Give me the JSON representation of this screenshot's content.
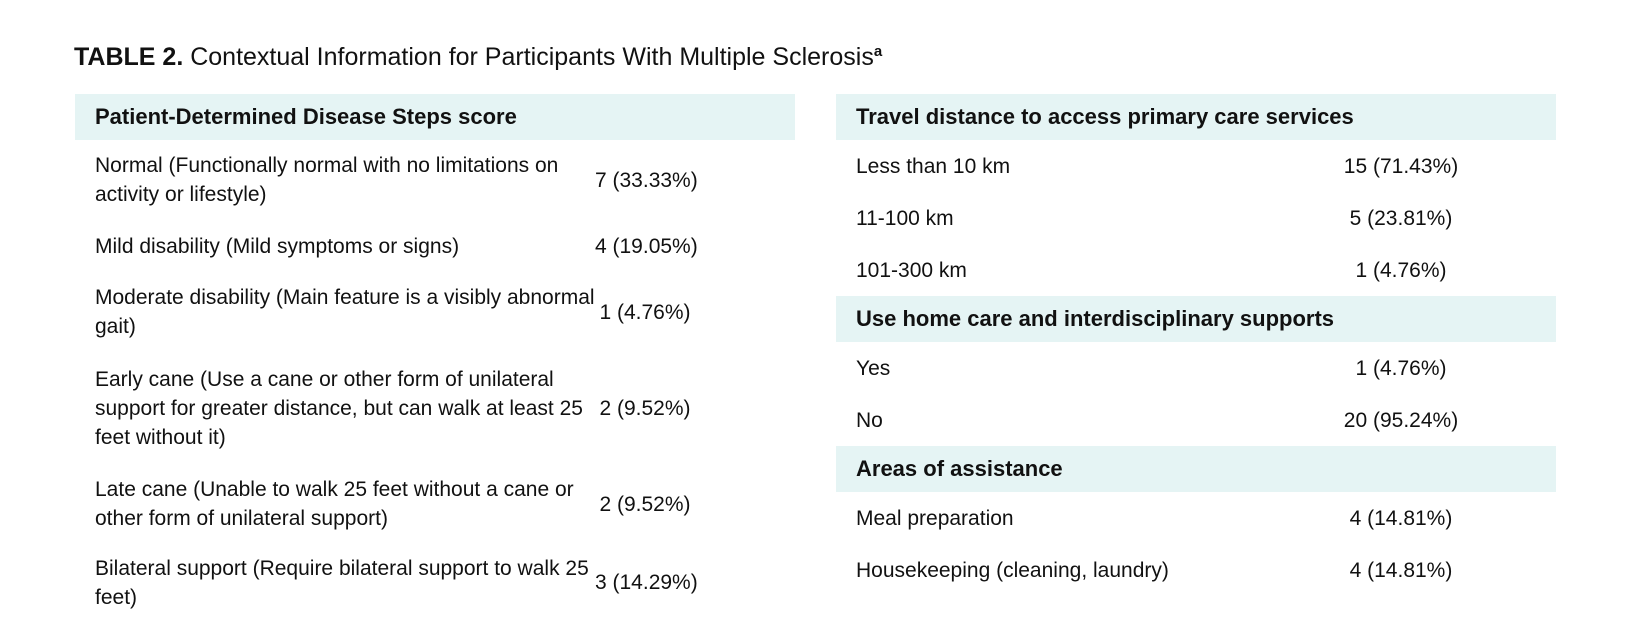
{
  "table": {
    "label": "TABLE 2.",
    "title": "Contextual Information for Participants With Multiple Sclerosis",
    "footnote_marker": "a"
  },
  "left": {
    "heading": "Patient-Determined Disease Steps score",
    "rows": [
      {
        "label": "Normal (Functionally normal with no limitations on activity or lifestyle)",
        "value": "7 (33.33%)"
      },
      {
        "label": "Mild disability (Mild symptoms or signs)",
        "value": "4 (19.05%)"
      },
      {
        "label": "Moderate disability (Main feature is a visibly abnormal gait)",
        "value": "1 (4.76%)"
      },
      {
        "label": "Early cane (Use a cane or other form of unilateral support for greater distance, but can walk at least 25 feet without it)",
        "value": "2 (9.52%)"
      },
      {
        "label": "Late cane (Unable to walk 25 feet without a cane or other form of unilateral support)",
        "value": "2 (9.52%)"
      },
      {
        "label": "Bilateral support (Require bilateral support to walk 25 feet)",
        "value": "3 (14.29%)"
      }
    ]
  },
  "right": {
    "sections": [
      {
        "heading": "Travel distance to access primary care services",
        "rows": [
          {
            "label": "Less than 10 km",
            "value": "15 (71.43%)"
          },
          {
            "label": "11-100 km",
            "value": "5 (23.81%)"
          },
          {
            "label": "101-300 km",
            "value": "1 (4.76%)"
          }
        ]
      },
      {
        "heading": "Use home care and interdisciplinary supports",
        "rows": [
          {
            "label": "Yes",
            "value": "1 (4.76%)"
          },
          {
            "label": "No",
            "value": "20 (95.24%)"
          }
        ]
      },
      {
        "heading": "Areas of assistance",
        "rows": [
          {
            "label": "Meal preparation",
            "value": "4 (14.81%)"
          },
          {
            "label": "Housekeeping (cleaning, laundry)",
            "value": "4 (14.81%)"
          }
        ]
      }
    ]
  }
}
